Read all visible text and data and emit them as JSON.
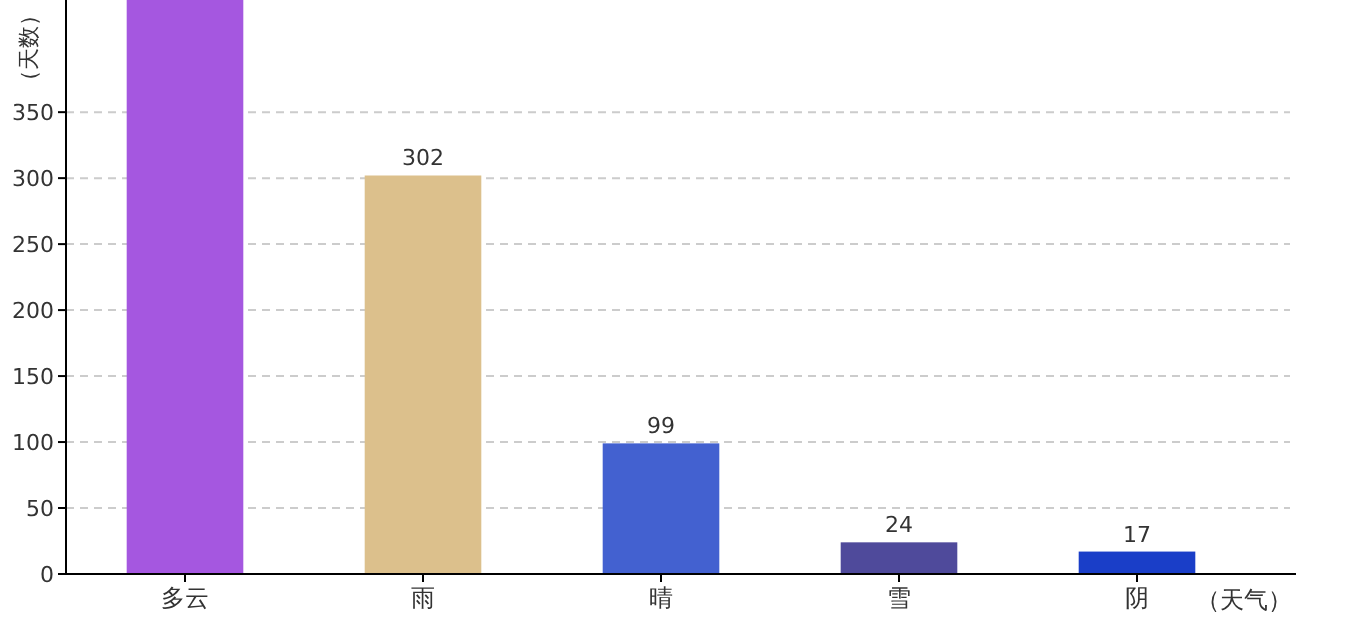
{
  "chart_data": {
    "type": "bar",
    "xlabel": "（天气）",
    "ylabel": "（天数）",
    "categories": [
      "多云",
      "雨",
      "晴",
      "雪",
      "阴"
    ],
    "values": [
      435,
      302,
      99,
      24,
      17
    ],
    "colors": [
      "#a557e0",
      "#dcc08c",
      "#4361d0",
      "#4f4a9b",
      "#1a3ec8"
    ],
    "value_labels": [
      null,
      "302",
      "99",
      "24",
      "17"
    ],
    "ylim": [
      0,
      435
    ],
    "yticks": [
      0,
      50,
      100,
      150,
      200,
      250,
      300,
      350
    ],
    "grid": "y"
  }
}
